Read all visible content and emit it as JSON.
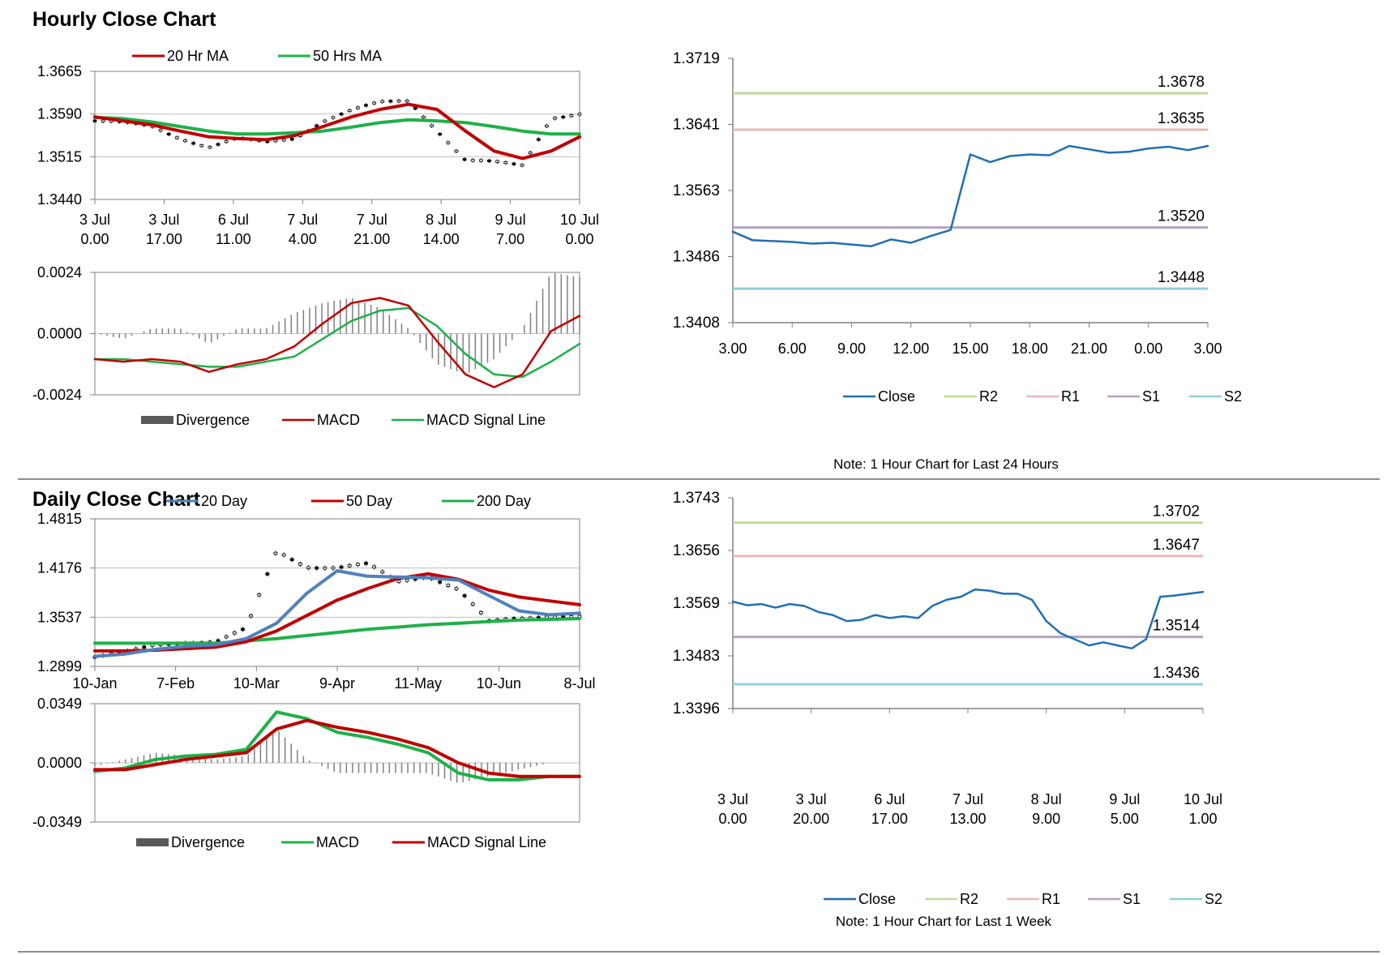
{
  "sections": {
    "hourly_title": "Hourly Close Chart",
    "daily_title": "Daily Close Chart"
  },
  "colors": {
    "red": "#c00000",
    "green": "#1fb04a",
    "blue": "#4f81bd",
    "close": "#1f6fb2",
    "r2": "#c4d79b",
    "r1": "#e6b9b8",
    "s1": "#b3a2c7",
    "s2": "#93cddd",
    "divergence": "#7f7f7f",
    "grid": "#bfbfbf",
    "axis": "#808080"
  },
  "chart_data": [
    {
      "id": "hourly_price",
      "type": "line",
      "title": "",
      "ylim": [
        1.344,
        1.3665
      ],
      "y_ticks": [
        "1.3665",
        "1.3590",
        "1.3515",
        "1.3440"
      ],
      "x_ticks": [
        {
          "day": "3 Jul",
          "time": "0.00"
        },
        {
          "day": "3 Jul",
          "time": "17.00"
        },
        {
          "day": "6 Jul",
          "time": "11.00"
        },
        {
          "day": "7 Jul",
          "time": "4.00"
        },
        {
          "day": "7 Jul",
          "time": "21.00"
        },
        {
          "day": "8 Jul",
          "time": "14.00"
        },
        {
          "day": "9 Jul",
          "time": "7.00"
        },
        {
          "day": "10 Jul",
          "time": "0.00"
        }
      ],
      "legend": [
        "20 Hr MA",
        "50 Hrs MA"
      ],
      "series": [
        {
          "name": "20 Hr MA",
          "color_key": "red",
          "values": [
            1.3585,
            1.3578,
            1.3571,
            1.356,
            1.355,
            1.3547,
            1.3545,
            1.3552,
            1.3568,
            1.3585,
            1.3598,
            1.3607,
            1.3598,
            1.356,
            1.3525,
            1.3512,
            1.3525,
            1.355
          ]
        },
        {
          "name": "50 Hrs MA",
          "color_key": "green",
          "values": [
            1.3584,
            1.3582,
            1.3576,
            1.3568,
            1.356,
            1.3555,
            1.3555,
            1.3557,
            1.356,
            1.3567,
            1.3575,
            1.358,
            1.3578,
            1.3575,
            1.3568,
            1.356,
            1.3555,
            1.3555
          ]
        },
        {
          "name": "Price",
          "color_key": "black",
          "values": [
            1.3578,
            1.3574,
            1.3568,
            1.3548,
            1.3532,
            1.3546,
            1.354,
            1.3548,
            1.3578,
            1.3596,
            1.361,
            1.3614,
            1.3562,
            1.3508,
            1.3505,
            1.35,
            1.3584,
            1.359
          ]
        }
      ]
    },
    {
      "id": "hourly_macd",
      "type": "line",
      "ylim": [
        -0.0024,
        0.0024
      ],
      "y_ticks": [
        "0.0024",
        "0.0000",
        "-0.0024"
      ],
      "legend": [
        "Divergence",
        "MACD",
        "MACD Signal Line"
      ],
      "series": [
        {
          "name": "MACD",
          "color_key": "red",
          "values": [
            -0.001,
            -0.0011,
            -0.001,
            -0.0011,
            -0.0015,
            -0.0012,
            -0.001,
            -0.0005,
            0.0004,
            0.0012,
            0.0014,
            0.0011,
            -0.0003,
            -0.0016,
            -0.0021,
            -0.0016,
            0.0001,
            0.0007
          ]
        },
        {
          "name": "MACD Signal Line",
          "color_key": "green",
          "values": [
            -0.001,
            -0.001,
            -0.0011,
            -0.0012,
            -0.0013,
            -0.0013,
            -0.0011,
            -0.0009,
            -0.0002,
            0.0005,
            0.0009,
            0.001,
            0.0003,
            -0.0008,
            -0.0016,
            -0.0017,
            -0.0011,
            -0.0004
          ]
        }
      ]
    },
    {
      "id": "hourly_levels",
      "type": "line",
      "ylim": [
        1.3408,
        1.3719
      ],
      "y_ticks": [
        "1.3719",
        "1.3641",
        "1.3563",
        "1.3486",
        "1.3408"
      ],
      "x_ticks": [
        "3.00",
        "6.00",
        "9.00",
        "12.00",
        "15.00",
        "18.00",
        "21.00",
        "0.00",
        "3.00"
      ],
      "legend": [
        "Close",
        "R2",
        "R1",
        "S1",
        "S2"
      ],
      "levels": [
        {
          "name": "R2",
          "value": 1.3678,
          "label": "1.3678",
          "color_key": "r2"
        },
        {
          "name": "R1",
          "value": 1.3635,
          "label": "1.3635",
          "color_key": "r1"
        },
        {
          "name": "S1",
          "value": 1.352,
          "label": "1.3520",
          "color_key": "s1"
        },
        {
          "name": "S2",
          "value": 1.3448,
          "label": "1.3448",
          "color_key": "s2"
        }
      ],
      "series": [
        {
          "name": "Close",
          "color_key": "close",
          "values": [
            1.3515,
            1.3505,
            1.3504,
            1.3503,
            1.3501,
            1.3502,
            1.35,
            1.3498,
            1.3506,
            1.3502,
            1.351,
            1.3517,
            1.3606,
            1.3597,
            1.3604,
            1.3606,
            1.3605,
            1.3616,
            1.3612,
            1.3608,
            1.3609,
            1.3613,
            1.3615,
            1.3611,
            1.3616
          ]
        }
      ],
      "note": "Note: 1 Hour Chart for Last 24 Hours"
    },
    {
      "id": "daily_price",
      "type": "line",
      "ylim": [
        1.2899,
        1.4815
      ],
      "y_ticks": [
        "1.4815",
        "1.4176",
        "1.3537",
        "1.2899"
      ],
      "x_ticks": [
        "10-Jan",
        "7-Feb",
        "10-Mar",
        "9-Apr",
        "11-May",
        "10-Jun",
        "8-Jul"
      ],
      "legend": [
        "20 Day",
        "50 Day",
        "200 Day"
      ],
      "series": [
        {
          "name": "20 Day",
          "color_key": "blue",
          "values": [
            1.303,
            1.306,
            1.312,
            1.316,
            1.318,
            1.326,
            1.346,
            1.385,
            1.414,
            1.407,
            1.406,
            1.405,
            1.402,
            1.382,
            1.362,
            1.357,
            1.359
          ]
        },
        {
          "name": "50 Day",
          "color_key": "red",
          "values": [
            1.31,
            1.31,
            1.311,
            1.313,
            1.315,
            1.322,
            1.336,
            1.356,
            1.376,
            1.391,
            1.404,
            1.41,
            1.403,
            1.389,
            1.38,
            1.375,
            1.37
          ]
        },
        {
          "name": "200 Day",
          "color_key": "green",
          "values": [
            1.32,
            1.32,
            1.32,
            1.32,
            1.32,
            1.323,
            1.326,
            1.33,
            1.334,
            1.338,
            1.341,
            1.344,
            1.346,
            1.348,
            1.35,
            1.351,
            1.352
          ]
        },
        {
          "name": "Price",
          "color_key": "black",
          "values": [
            1.302,
            1.307,
            1.318,
            1.322,
            1.322,
            1.338,
            1.44,
            1.42,
            1.418,
            1.422,
            1.4,
            1.408,
            1.39,
            1.347,
            1.352,
            1.356,
            1.355
          ]
        }
      ]
    },
    {
      "id": "daily_macd",
      "type": "line",
      "ylim": [
        -0.0349,
        0.0349
      ],
      "y_ticks": [
        "0.0349",
        "0.0000",
        "-0.0349"
      ],
      "legend": [
        "Divergence",
        "MACD",
        "MACD Signal Line"
      ],
      "series": [
        {
          "name": "MACD",
          "color_key": "green",
          "values": [
            -0.005,
            -0.003,
            0.002,
            0.004,
            0.005,
            0.008,
            0.03,
            0.026,
            0.018,
            0.015,
            0.011,
            0.006,
            -0.006,
            -0.01,
            -0.01,
            -0.008,
            -0.008
          ]
        },
        {
          "name": "MACD Signal Line",
          "color_key": "red",
          "values": [
            -0.004,
            -0.004,
            -0.001,
            0.002,
            0.004,
            0.006,
            0.02,
            0.025,
            0.021,
            0.018,
            0.014,
            0.009,
            0.0,
            -0.006,
            -0.008,
            -0.008,
            -0.008
          ]
        }
      ]
    },
    {
      "id": "daily_levels",
      "type": "line",
      "ylim": [
        1.3396,
        1.3743
      ],
      "y_ticks": [
        "1.3743",
        "1.3656",
        "1.3569",
        "1.3483",
        "1.3396"
      ],
      "x_ticks": [
        {
          "day": "3 Jul",
          "time": "0.00"
        },
        {
          "day": "3 Jul",
          "time": "20.00"
        },
        {
          "day": "6 Jul",
          "time": "17.00"
        },
        {
          "day": "7 Jul",
          "time": "13.00"
        },
        {
          "day": "8 Jul",
          "time": "9.00"
        },
        {
          "day": "9 Jul",
          "time": "5.00"
        },
        {
          "day": "10 Jul",
          "time": "1.00"
        }
      ],
      "legend": [
        "Close",
        "R2",
        "R1",
        "S1",
        "S2"
      ],
      "levels": [
        {
          "name": "R2",
          "value": 1.3702,
          "label": "1.3702",
          "color_key": "r2"
        },
        {
          "name": "R1",
          "value": 1.3647,
          "label": "1.3647",
          "color_key": "r1"
        },
        {
          "name": "S1",
          "value": 1.3514,
          "label": "1.3514",
          "color_key": "s1"
        },
        {
          "name": "S2",
          "value": 1.3436,
          "label": "1.3436",
          "color_key": "s2"
        }
      ],
      "series": [
        {
          "name": "Close",
          "color_key": "close",
          "values": [
            1.3572,
            1.3566,
            1.3568,
            1.3562,
            1.3568,
            1.3565,
            1.3555,
            1.355,
            1.354,
            1.3542,
            1.355,
            1.3545,
            1.3548,
            1.3545,
            1.3565,
            1.3575,
            1.358,
            1.3592,
            1.359,
            1.3585,
            1.3585,
            1.3575,
            1.354,
            1.352,
            1.351,
            1.35,
            1.3505,
            1.35,
            1.3495,
            1.351,
            1.358,
            1.3582,
            1.3585,
            1.3588
          ]
        }
      ],
      "note": "Note: 1 Hour Chart for  Last 1 Week"
    }
  ]
}
